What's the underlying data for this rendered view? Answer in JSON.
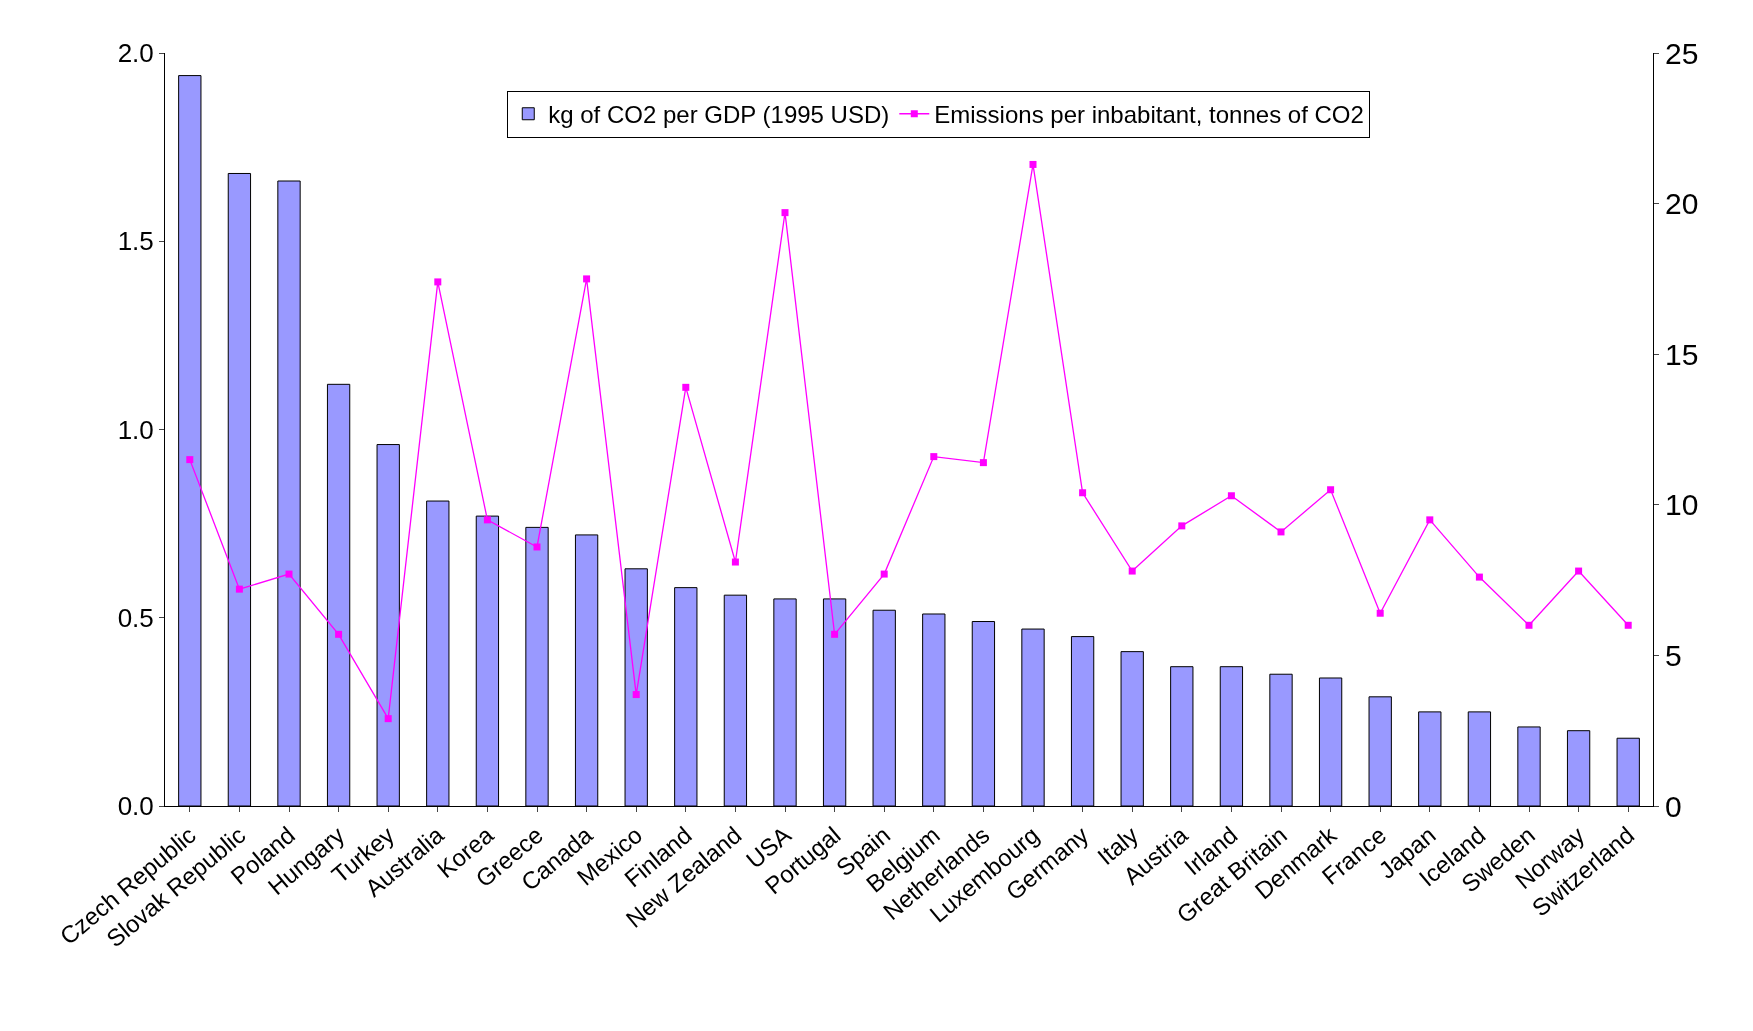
{
  "chart_data": {
    "type": "bar",
    "categories": [
      "Czech Republic",
      "Slovak Republic",
      "Poland",
      "Hungary",
      "Turkey",
      "Australia",
      "Korea",
      "Greece",
      "Canada",
      "Mexico",
      "Finland",
      "New Zealand",
      "USA",
      "Portugal",
      "Spain",
      "Belgium",
      "Netherlands",
      "Luxembourg",
      "Germany",
      "Italy",
      "Austria",
      "Irland",
      "Great Britain",
      "Denmark",
      "France",
      "Japan",
      "Iceland",
      "Sweden",
      "Norway",
      "Switzerland"
    ],
    "series": [
      {
        "name": "kg of CO2 per GDP (1995 USD)",
        "color": "#9999ff",
        "values": [
          1.94,
          1.68,
          1.66,
          1.12,
          0.96,
          0.81,
          0.77,
          0.74,
          0.72,
          0.63,
          0.58,
          0.56,
          0.55,
          0.55,
          0.52,
          0.51,
          0.49,
          0.47,
          0.45,
          0.41,
          0.37,
          0.37,
          0.35,
          0.34,
          0.29,
          0.25,
          0.25,
          0.21,
          0.2,
          0.18
        ]
      },
      {
        "name": "Emissions per inbabitant, tonnes of CO2",
        "type": "line",
        "axis": "y2",
        "color": "#ff00ff",
        "marker": "square",
        "values": [
          11.5,
          7.2,
          7.7,
          5.7,
          2.9,
          17.4,
          9.5,
          8.6,
          17.5,
          3.7,
          13.9,
          8.1,
          19.7,
          5.7,
          7.7,
          11.6,
          11.4,
          21.3,
          10.4,
          7.8,
          9.3,
          10.3,
          9.1,
          10.5,
          6.4,
          9.5,
          7.6,
          6.0,
          7.8,
          6.0
        ]
      }
    ],
    "ylim": [
      0,
      2
    ],
    "yticks": [
      {
        "value": 0,
        "label": "0.0"
      },
      {
        "value": 0.5,
        "label": "0.5"
      },
      {
        "value": 1,
        "label": "1.0"
      },
      {
        "value": 1.5,
        "label": "1.5"
      },
      {
        "value": 2,
        "label": "2.0"
      }
    ],
    "y2lim": [
      0,
      25
    ],
    "y2ticks": [
      0,
      5,
      10,
      15,
      20,
      25
    ],
    "grid": false,
    "legend": "top"
  }
}
